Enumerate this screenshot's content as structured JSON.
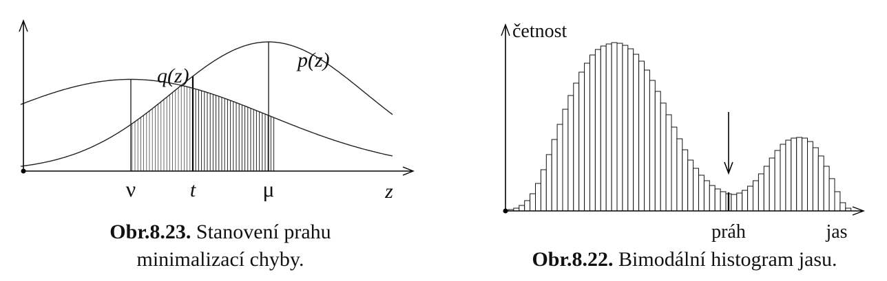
{
  "chart_data": [
    {
      "type": "line",
      "curves": [
        {
          "name": "q(z)",
          "center": "ν",
          "mean": 0.0,
          "sigma": 1.0,
          "peak": 0.71
        },
        {
          "name": "p(z)",
          "center": "μ",
          "mean": 1.0,
          "sigma": 0.7,
          "peak": 1.0
        }
      ],
      "tick_labels": [
        "ν",
        "t",
        "μ"
      ],
      "tick_values": [
        0.0,
        0.45,
        1.0
      ],
      "xlabel": "z",
      "xlim": [
        -0.8,
        1.9
      ],
      "annotations": {
        "threshold": "t"
      },
      "caption": {
        "number": "Obr.8.23.",
        "text_line1": "Stanovení prahu",
        "text_line2": "minimalizací chyby."
      }
    },
    {
      "type": "bar",
      "values": [
        2,
        4,
        8,
        15,
        25,
        40,
        60,
        82,
        104,
        126,
        148,
        168,
        186,
        202,
        215,
        227,
        235,
        240,
        243,
        245,
        244,
        241,
        236,
        228,
        218,
        205,
        190,
        174,
        157,
        140,
        122,
        105,
        89,
        74,
        62,
        52,
        44,
        37,
        32,
        28,
        25,
        24,
        26,
        30,
        36,
        44,
        54,
        65,
        77,
        88,
        97,
        103,
        106,
        107,
        106,
        101,
        92,
        80,
        65,
        47,
        28,
        12,
        4
      ],
      "ylabel": "četnost",
      "xlabel": "jas",
      "annotations": {
        "threshold_label": "práh",
        "threshold_index": 40
      },
      "caption": {
        "number": "Obr.8.22.",
        "text": "Bimodální histogram jasu."
      }
    }
  ]
}
